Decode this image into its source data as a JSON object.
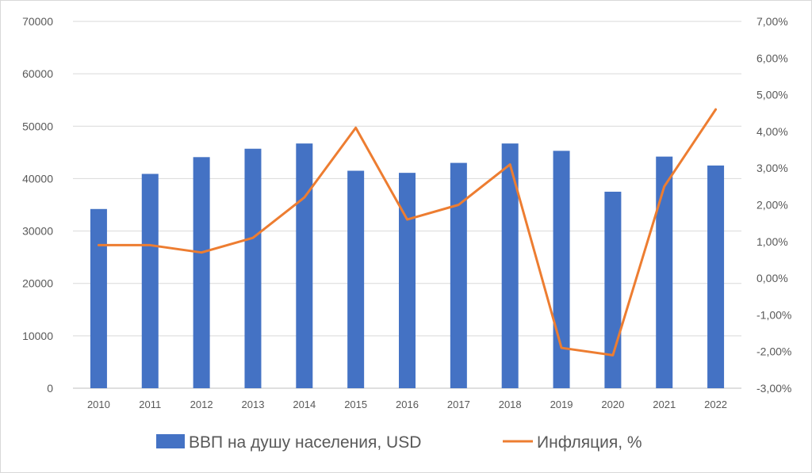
{
  "chart_data": {
    "type": "bar+line",
    "categories": [
      "2010",
      "2011",
      "2012",
      "2013",
      "2014",
      "2015",
      "2016",
      "2017",
      "2018",
      "2019",
      "2020",
      "2021",
      "2022"
    ],
    "series": [
      {
        "name": "ВВП на душу населения, USD",
        "type": "bar",
        "axis": "left",
        "color": "#4472c4",
        "values": [
          34200,
          40900,
          44100,
          45700,
          46700,
          41500,
          41100,
          43000,
          46700,
          45300,
          37500,
          44200,
          42500
        ]
      },
      {
        "name": "Инфляция, %",
        "type": "line",
        "axis": "right",
        "color": "#ed7d31",
        "values": [
          0.9,
          0.9,
          0.7,
          1.1,
          2.2,
          4.1,
          1.6,
          2.0,
          3.1,
          -1.9,
          -2.1,
          2.5,
          4.6
        ]
      }
    ],
    "y_left": {
      "ylim": [
        0,
        70000
      ],
      "ticks": [
        0,
        10000,
        20000,
        30000,
        40000,
        50000,
        60000,
        70000
      ],
      "tick_labels": [
        "0",
        "10000",
        "20000",
        "30000",
        "40000",
        "50000",
        "60000",
        "70000"
      ]
    },
    "y_right": {
      "ylim": [
        -3,
        7
      ],
      "ticks": [
        -3,
        -2,
        -1,
        0,
        1,
        2,
        3,
        4,
        5,
        6,
        7
      ],
      "tick_labels": [
        "-3,00%",
        "-2,00%",
        "-1,00%",
        "0,00%",
        "1,00%",
        "2,00%",
        "3,00%",
        "4,00%",
        "5,00%",
        "6,00%",
        "7,00%"
      ]
    },
    "grid": true,
    "legend": "bottom",
    "title": "",
    "xlabel": "",
    "ylabel": ""
  }
}
